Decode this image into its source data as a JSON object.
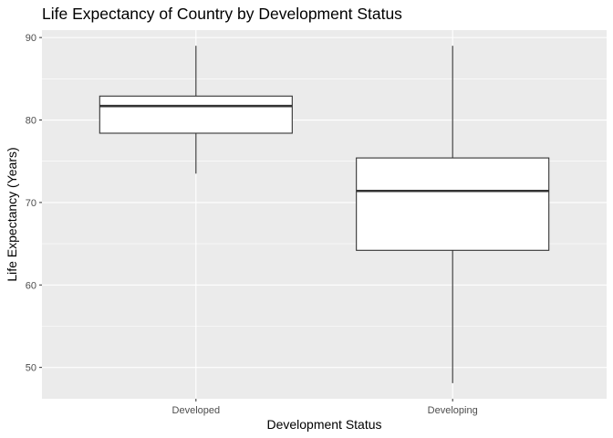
{
  "chart_data": {
    "type": "boxplot",
    "title": "Life Expectancy of Country by Development Status",
    "xlabel": "Development Status",
    "ylabel": "Life Expectancy (Years)",
    "categories": [
      "Developed",
      "Developing"
    ],
    "boxes": [
      {
        "category": "Developed",
        "whisker_low": 73.5,
        "q1": 78.4,
        "median": 81.7,
        "q3": 82.9,
        "whisker_high": 89.0
      },
      {
        "category": "Developing",
        "whisker_low": 48.1,
        "q1": 64.2,
        "median": 71.4,
        "q3": 75.4,
        "whisker_high": 89.0
      }
    ],
    "ylim": [
      46.2,
      90.9
    ],
    "y_ticks": [
      50,
      60,
      70,
      80,
      90
    ],
    "y_tick_labels": [
      "50",
      "60",
      "70",
      "80",
      "90"
    ],
    "grid": true,
    "legend": "none",
    "colors": {
      "panel_background": "#ebebeb",
      "grid_major": "#ffffff",
      "box_fill": "#ffffff",
      "box_line": "#333333",
      "tick_label": "#4d4d4d"
    }
  }
}
